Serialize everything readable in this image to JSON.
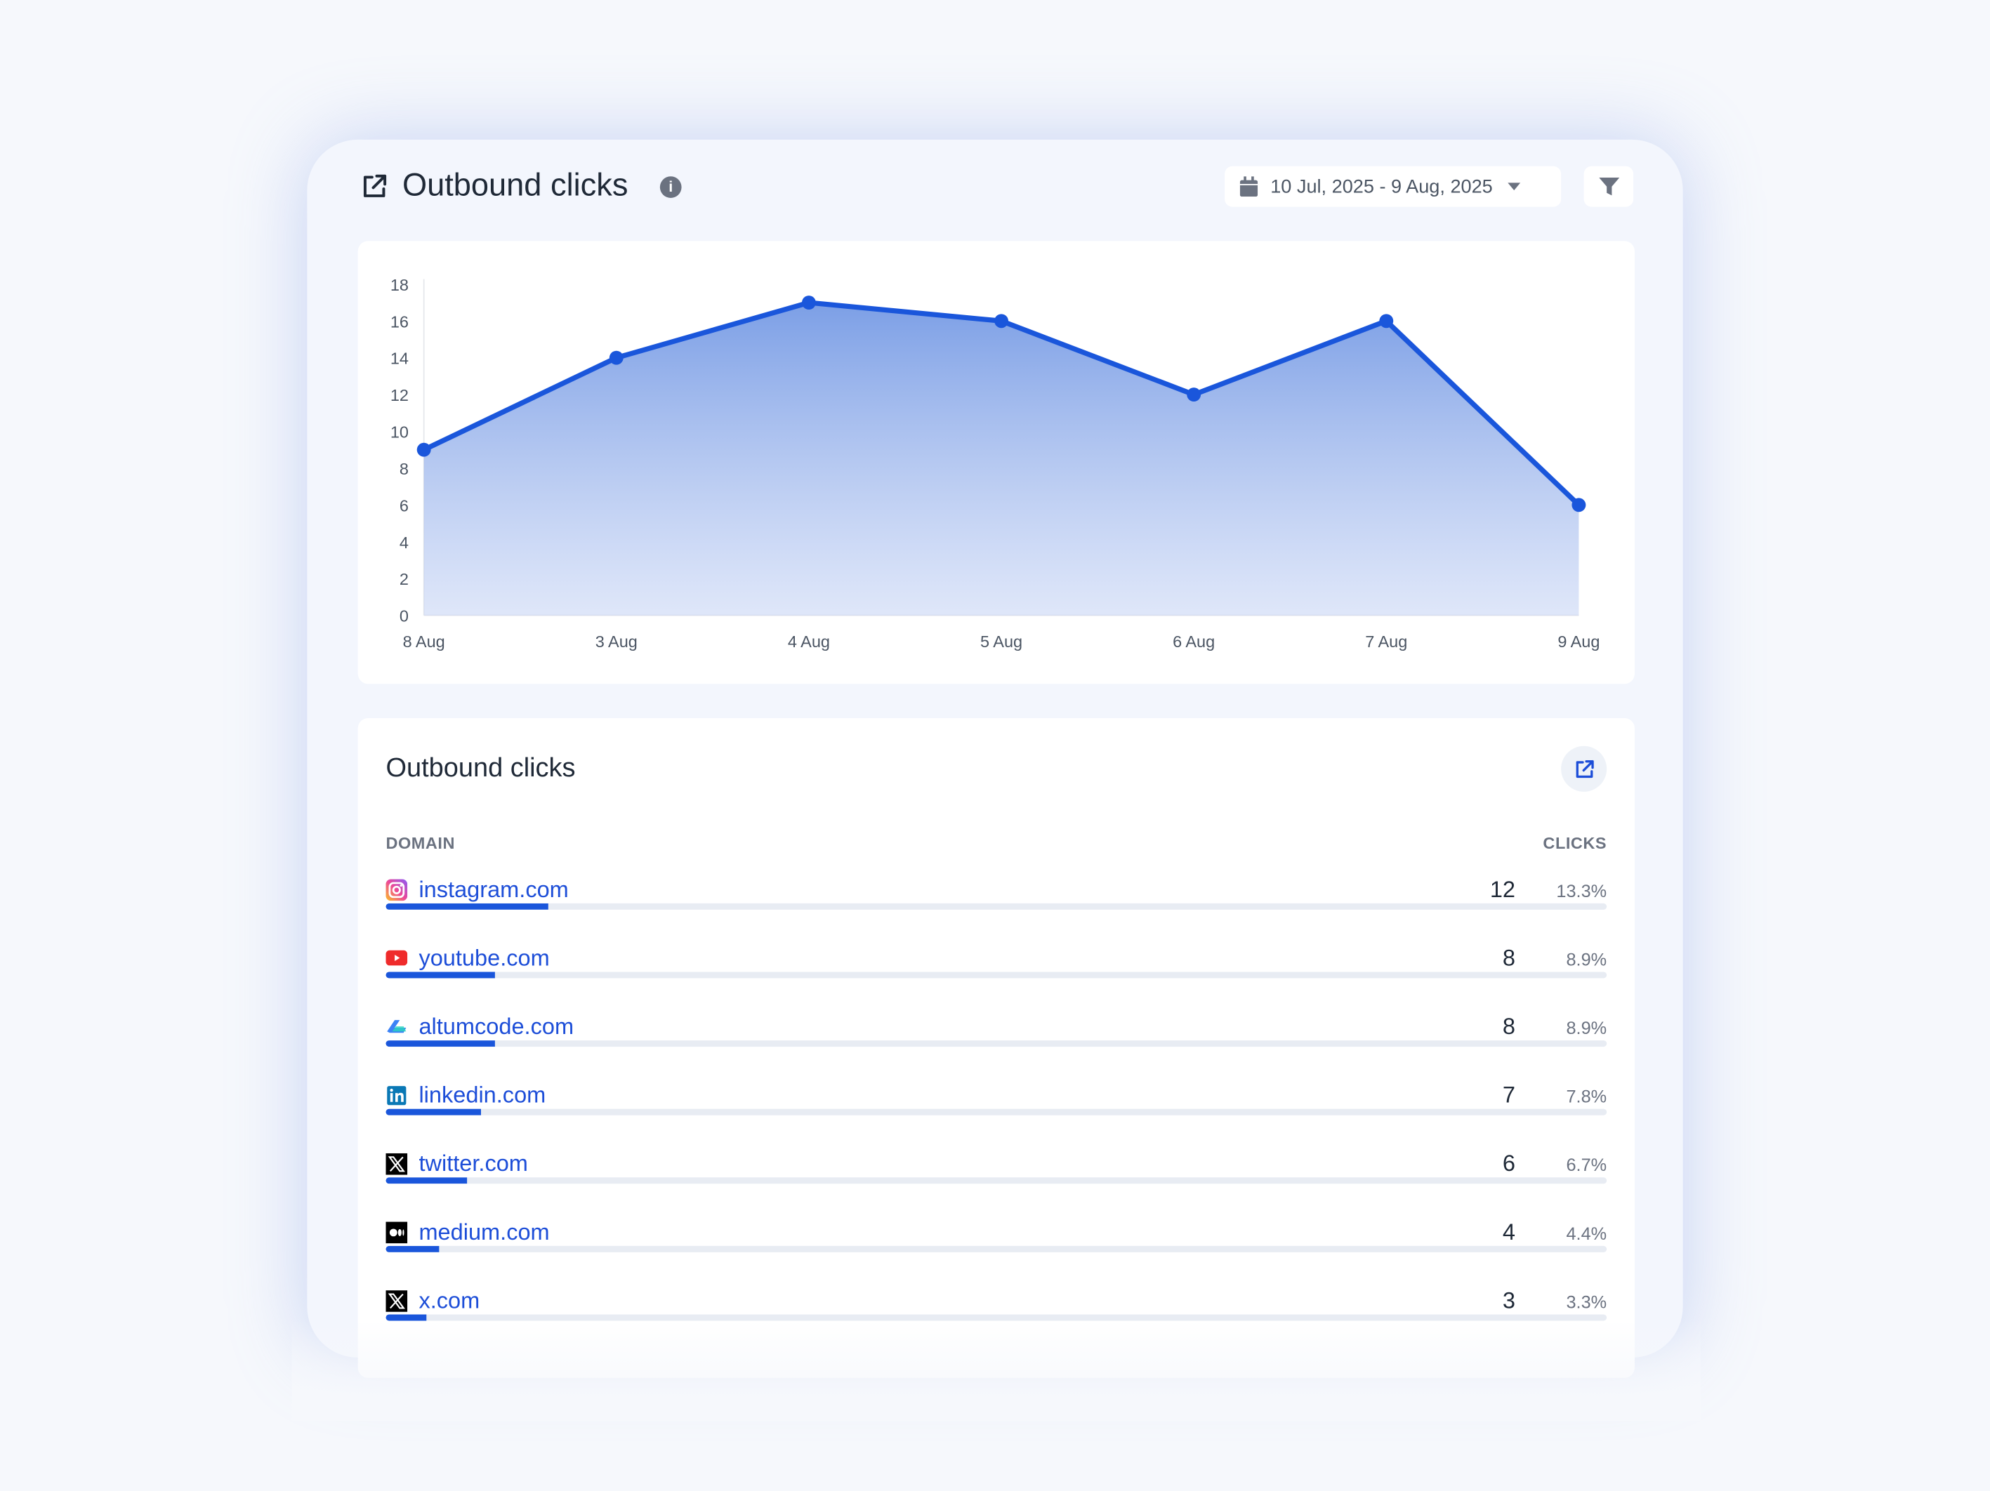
{
  "header": {
    "title": "Outbound clicks",
    "icon": "external-link-icon",
    "info_icon": "info-icon",
    "date_range": "10 Jul, 2025 - 9 Aug, 2025"
  },
  "chart_data": {
    "type": "area",
    "x": [
      "8 Aug",
      "3 Aug",
      "4 Aug",
      "5 Aug",
      "6 Aug",
      "7 Aug",
      "9 Aug"
    ],
    "values": [
      9,
      14,
      17,
      16,
      12,
      16,
      6
    ],
    "ylim": [
      0,
      18
    ],
    "yticks": [
      0,
      2,
      4,
      6,
      8,
      10,
      12,
      14,
      16,
      18
    ],
    "grid": false,
    "color": "#1a56db"
  },
  "table": {
    "title": "Outbound clicks",
    "col_domain": "DOMAIN",
    "col_clicks": "CLICKS",
    "rows": [
      {
        "domain": "instagram.com",
        "icon": "instagram-icon",
        "clicks": "12",
        "percent": "13.3%",
        "share": 13.3
      },
      {
        "domain": "youtube.com",
        "icon": "youtube-icon",
        "clicks": "8",
        "percent": "8.9%",
        "share": 8.9
      },
      {
        "domain": "altumcode.com",
        "icon": "altumcode-icon",
        "clicks": "8",
        "percent": "8.9%",
        "share": 8.9
      },
      {
        "domain": "linkedin.com",
        "icon": "linkedin-icon",
        "clicks": "7",
        "percent": "7.8%",
        "share": 7.8
      },
      {
        "domain": "twitter.com",
        "icon": "x-icon",
        "clicks": "6",
        "percent": "6.7%",
        "share": 6.7
      },
      {
        "domain": "medium.com",
        "icon": "medium-icon",
        "clicks": "4",
        "percent": "4.4%",
        "share": 4.4
      },
      {
        "domain": "x.com",
        "icon": "x-icon",
        "clicks": "3",
        "percent": "3.3%",
        "share": 3.3
      }
    ]
  }
}
